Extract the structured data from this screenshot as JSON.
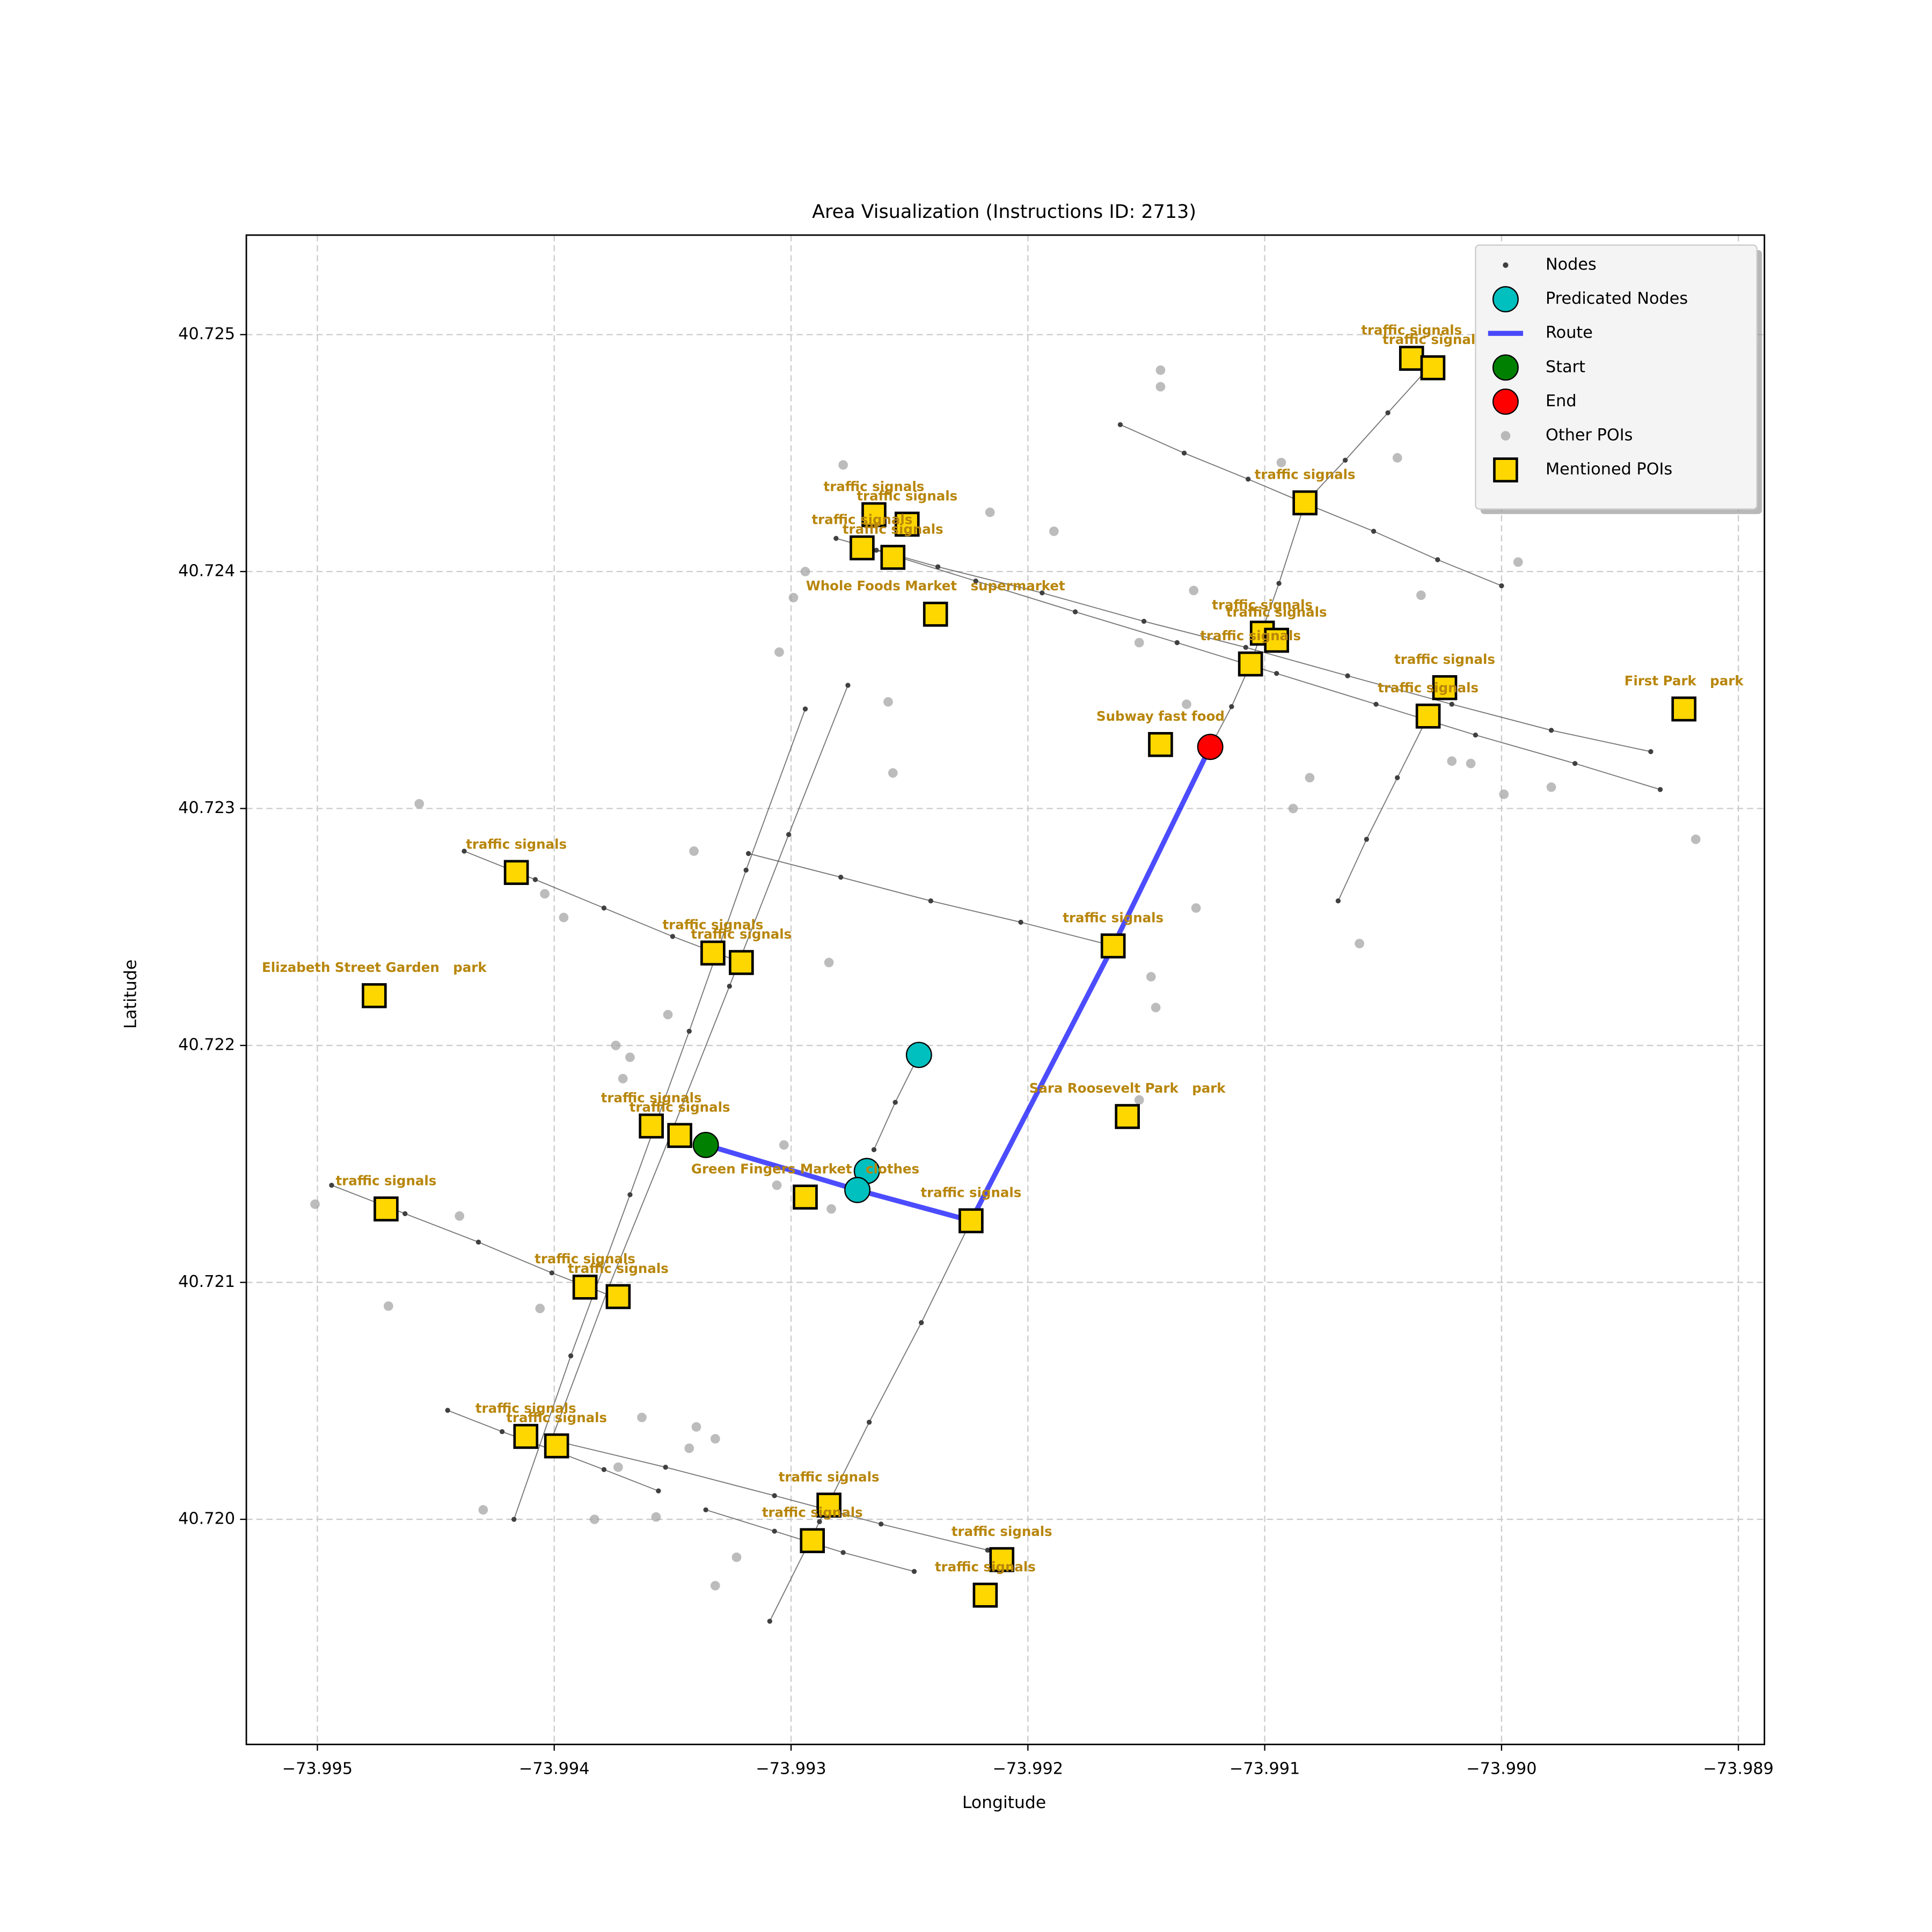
{
  "chart_data": {
    "type": "scatter",
    "title": "Area Visualization (Instructions ID: 2713)",
    "x_label": "Longitude",
    "y_label": "Latitude",
    "xlim": [
      -73.9953,
      -73.98889
    ],
    "ylim": [
      40.71905,
      40.72542
    ],
    "xticks": [
      {
        "value": -73.995,
        "label": "−73.995"
      },
      {
        "value": -73.994,
        "label": "−73.994"
      },
      {
        "value": -73.993,
        "label": "−73.993"
      },
      {
        "value": -73.992,
        "label": "−73.992"
      },
      {
        "value": -73.991,
        "label": "−73.991"
      },
      {
        "value": -73.99,
        "label": "−73.990"
      },
      {
        "value": -73.989,
        "label": "−73.989"
      }
    ],
    "yticks": [
      {
        "value": 40.72,
        "label": "40.720"
      },
      {
        "value": 40.721,
        "label": "40.721"
      },
      {
        "value": 40.722,
        "label": "40.722"
      },
      {
        "value": 40.723,
        "label": "40.723"
      },
      {
        "value": 40.724,
        "label": "40.724"
      },
      {
        "value": 40.725,
        "label": "40.725"
      }
    ],
    "grid": true,
    "legend": "upper right",
    "series": [
      {
        "name": "Nodes",
        "color": "#404040",
        "marker": "point",
        "x": [
          -73.99161,
          -73.99134,
          -73.99107,
          -73.99081,
          -73.99054,
          -73.99027,
          -73.99,
          null,
          -73.99281,
          -73.99238,
          -73.99194,
          -73.99151,
          -73.99108,
          -73.99065,
          -73.99021,
          -73.98979,
          -73.98937,
          null,
          -73.99264,
          -73.99222,
          -73.9918,
          -73.99137,
          -73.99095,
          -73.99053,
          -73.99011,
          -73.98969,
          -73.98933,
          null,
          -73.99029,
          -73.99048,
          -73.99066,
          -73.99083,
          -73.99094,
          -73.99106,
          -73.99114,
          -73.99123,
          null,
          -73.99318,
          -73.99279,
          -73.99241,
          -73.99203,
          -73.99164,
          null,
          -73.99438,
          -73.99408,
          -73.99379,
          -73.9935,
          -73.99321,
          null,
          -73.99417,
          -73.99393,
          -73.99368,
          -73.99343,
          -73.99319,
          -73.99294,
          null,
          -73.99401,
          -73.99377,
          -73.99351,
          -73.99326,
          -73.99301,
          -73.99276,
          null,
          -73.99494,
          -73.99463,
          -73.99432,
          -73.99401,
          -73.9937,
          null,
          -73.99445,
          -73.99422,
          -73.994,
          -73.99379,
          -73.99356,
          null,
          -73.99399,
          -73.99353,
          -73.99307,
          -73.99262,
          -73.99217,
          null,
          -73.99336,
          -73.99307,
          -73.99278,
          -73.99248,
          null,
          -73.99309,
          -73.99288,
          -73.99267,
          -73.99245,
          -73.99224,
          null,
          -73.99069,
          -73.99057,
          -73.99044,
          -73.99031,
          null,
          -73.99265,
          -73.99256,
          -73.99246
        ],
        "y": [
          40.72462,
          40.7245,
          40.72439,
          40.72428,
          40.72417,
          40.72405,
          40.72394,
          null,
          40.72414,
          40.72402,
          40.72391,
          40.72379,
          40.72368,
          40.72356,
          40.72344,
          40.72333,
          40.72324,
          null,
          40.72409,
          40.72396,
          40.72383,
          40.7237,
          40.72357,
          40.72344,
          40.72331,
          40.72319,
          40.72308,
          null,
          40.72488,
          40.72467,
          40.72447,
          40.72429,
          40.72395,
          40.72361,
          40.72343,
          40.72326,
          null,
          40.72281,
          40.72271,
          40.72261,
          40.72252,
          40.72242,
          null,
          40.72282,
          40.7227,
          40.72258,
          40.72246,
          40.72235,
          null,
          40.72,
          40.72069,
          40.72137,
          40.72206,
          40.72274,
          40.72342,
          null,
          40.72034,
          40.72098,
          40.72162,
          40.72225,
          40.72289,
          40.72352,
          null,
          40.72141,
          40.72129,
          40.72117,
          40.72104,
          40.72092,
          null,
          40.72046,
          40.72037,
          40.72029,
          40.72021,
          40.72012,
          null,
          40.72033,
          40.72022,
          40.7201,
          40.71998,
          40.71987,
          null,
          40.72004,
          40.71995,
          40.71986,
          40.71978,
          null,
          40.71957,
          40.71999,
          40.72041,
          40.72083,
          40.72126,
          null,
          40.72261,
          40.72287,
          40.72313,
          40.72339,
          null,
          40.72156,
          40.72176,
          40.72196
        ]
      },
      {
        "name": "Predicated Nodes",
        "color": "#00bfbf",
        "marker": "circle",
        "x": [
          -73.99246,
          -73.99268,
          -73.99272
        ],
        "y": [
          40.72196,
          40.72147,
          40.72139
        ]
      },
      {
        "name": "Route",
        "color": "#0000ff",
        "marker": "line",
        "x": [
          -73.99336,
          -73.99272,
          -73.99224,
          -73.99164,
          -73.99123
        ],
        "y": [
          40.72158,
          40.72139,
          40.72126,
          40.72242,
          40.72326
        ]
      },
      {
        "name": "Start",
        "color": "#008000",
        "marker": "circle",
        "x": [
          -73.99336
        ],
        "y": [
          40.72158
        ]
      },
      {
        "name": "End",
        "color": "#ff0000",
        "marker": "circle",
        "x": [
          -73.99123
        ],
        "y": [
          40.72326
        ]
      },
      {
        "name": "Other POIs",
        "color": "#a0a0a0",
        "marker": "dot",
        "x": [
          -73.99144,
          -73.99144,
          -73.99093,
          -73.99044,
          -73.99278,
          -73.99216,
          -73.99189,
          -73.98993,
          -73.99294,
          -73.99299,
          -73.9913,
          -73.99034,
          -73.99153,
          -73.99305,
          -73.99259,
          -73.99133,
          -73.99257,
          -73.99081,
          -73.99021,
          -73.99013,
          -73.99088,
          -73.98999,
          -73.98979,
          -73.98918,
          -73.99341,
          -73.99457,
          -73.99404,
          -73.99396,
          -73.99129,
          -73.99284,
          -73.9906,
          -73.99148,
          -73.99146,
          -73.99352,
          -73.99374,
          -73.99368,
          -73.99371,
          -73.99303,
          -73.99306,
          -73.99283,
          -73.99501,
          -73.9944,
          -73.9947,
          -73.99406,
          -73.99363,
          -73.9934,
          -73.99332,
          -73.99343,
          -73.99373,
          -73.9943,
          -73.99383,
          -73.99357,
          -73.99323,
          -73.99332,
          -73.99153
        ],
        "y": [
          40.72485,
          40.72478,
          40.72446,
          40.72448,
          40.72445,
          40.72425,
          40.72417,
          40.72404,
          40.724,
          40.72389,
          40.72392,
          40.7239,
          40.7237,
          40.72366,
          40.72345,
          40.72344,
          40.72315,
          40.72313,
          40.7232,
          40.72319,
          40.723,
          40.72306,
          40.72309,
          40.72287,
          40.72282,
          40.72302,
          40.72264,
          40.72254,
          40.72258,
          40.72235,
          40.72243,
          40.72229,
          40.72216,
          40.72213,
          40.722,
          40.72195,
          40.72186,
          40.72158,
          40.72141,
          40.72131,
          40.72133,
          40.72128,
          40.7209,
          40.72089,
          40.72043,
          40.72039,
          40.72034,
          40.7203,
          40.72022,
          40.72004,
          40.72,
          40.72001,
          40.71984,
          40.71972,
          40.72177
        ]
      },
      {
        "name": "Mentioned POIs",
        "color": "#ffd700",
        "marker": "square",
        "label_color": "#b8860b",
        "x": [
          -73.99038,
          -73.99029,
          -73.99083,
          -73.99265,
          -73.99251,
          -73.9927,
          -73.99257,
          -73.99239,
          -73.99101,
          -73.99095,
          -73.99106,
          -73.99024,
          -73.99031,
          -73.98923,
          -73.99144,
          -73.99416,
          -73.99164,
          -73.99333,
          -73.99321,
          -73.99476,
          -73.99158,
          -73.99359,
          -73.99347,
          -73.99294,
          -73.99224,
          -73.99471,
          -73.99387,
          -73.99373,
          -73.99412,
          -73.99399,
          -73.99284,
          -73.99291,
          -73.99211,
          -73.99218
        ],
        "y": [
          40.7249,
          40.72486,
          40.72429,
          40.72424,
          40.7242,
          40.7241,
          40.72406,
          40.72382,
          40.72374,
          40.72371,
          40.72361,
          40.72351,
          40.72339,
          40.72342,
          40.72327,
          40.72273,
          40.72242,
          40.72239,
          40.72235,
          40.72221,
          40.7217,
          40.72166,
          40.72162,
          40.72136,
          40.72126,
          40.72131,
          40.72098,
          40.72094,
          40.72035,
          40.72031,
          40.72006,
          40.71991,
          40.71983,
          40.71968
        ],
        "labels": [
          "traffic signals",
          "traffic signals",
          "traffic signals",
          "traffic signals",
          "traffic signals",
          "traffic signals",
          "traffic signals",
          "Whole Foods Market   supermarket",
          "traffic signals",
          "traffic signals",
          "traffic signals",
          "traffic signals",
          "traffic signals",
          "First Park   park",
          "Subway fast food",
          "traffic signals",
          "traffic signals",
          "traffic signals",
          "traffic signals",
          "Elizabeth Street Garden   park",
          "Sara Roosevelt Park   park",
          "traffic signals",
          "traffic signals",
          "Green Fingers Market   clothes",
          "traffic signals",
          "traffic signals",
          "traffic signals",
          "traffic signals",
          "traffic signals",
          "traffic signals",
          "traffic signals",
          "traffic signals",
          "traffic signals",
          "traffic signals"
        ]
      }
    ]
  }
}
